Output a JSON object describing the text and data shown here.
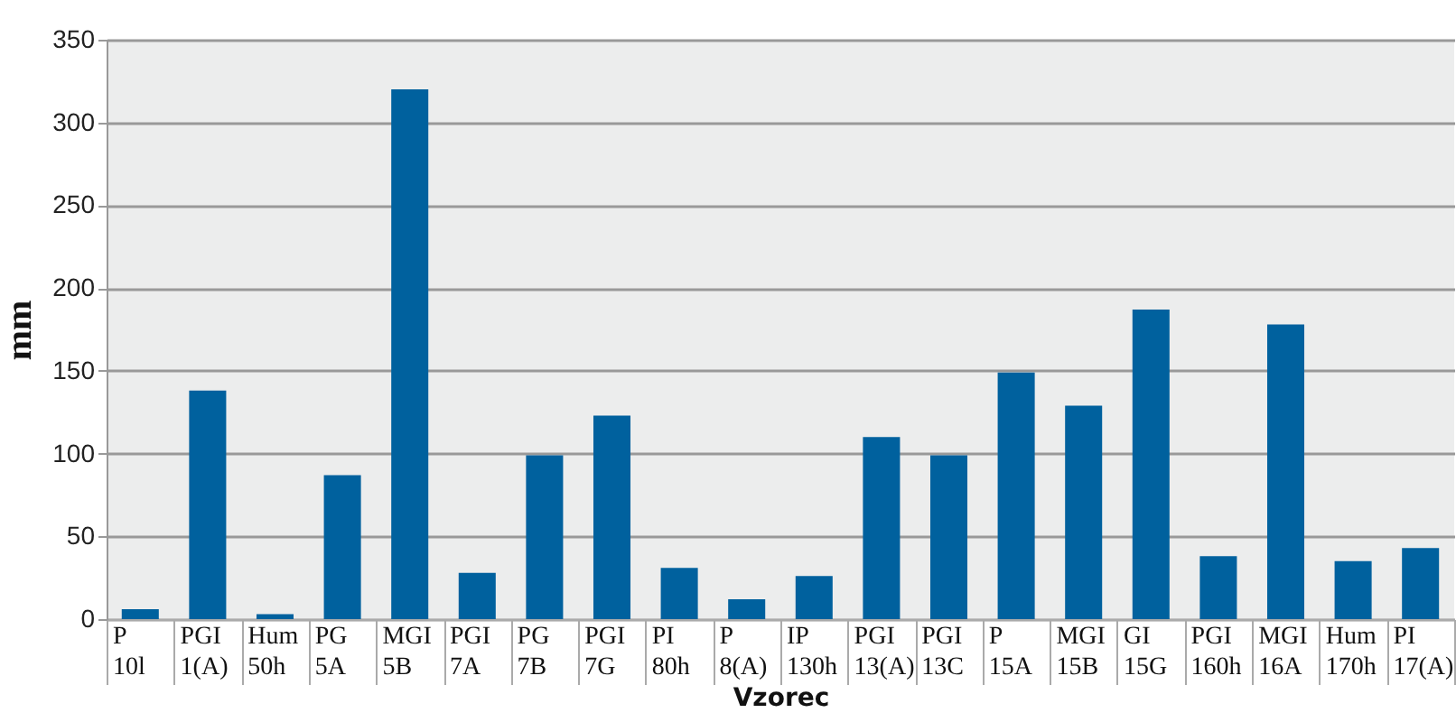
{
  "chart_data": {
    "type": "bar",
    "xlabel": "Vzorec",
    "ylabel": "mm",
    "categories": [
      "P 10l",
      "PGI 1(A)",
      "Hum 50h",
      "PG 5A",
      "MGI 5B",
      "PGI 7A",
      "PG 7B",
      "PGI 7G",
      "PI 80h",
      "P 8(A)",
      "IP 130h",
      "PGI 13(A)",
      "PGI 13C",
      "P 15A",
      "MGI 15B",
      "GI 15G",
      "PGI 160h",
      "MGI 16A",
      "Hum 170h",
      "PI 17(A)"
    ],
    "values": [
      6,
      138,
      3,
      87,
      320,
      28,
      99,
      123,
      31,
      12,
      26,
      110,
      99,
      149,
      129,
      187,
      38,
      178,
      35,
      43
    ],
    "color": "#00619e",
    "ylim": [
      0,
      350
    ],
    "yticks": [
      0,
      50,
      100,
      150,
      200,
      250,
      300,
      350
    ],
    "grid": "y"
  }
}
